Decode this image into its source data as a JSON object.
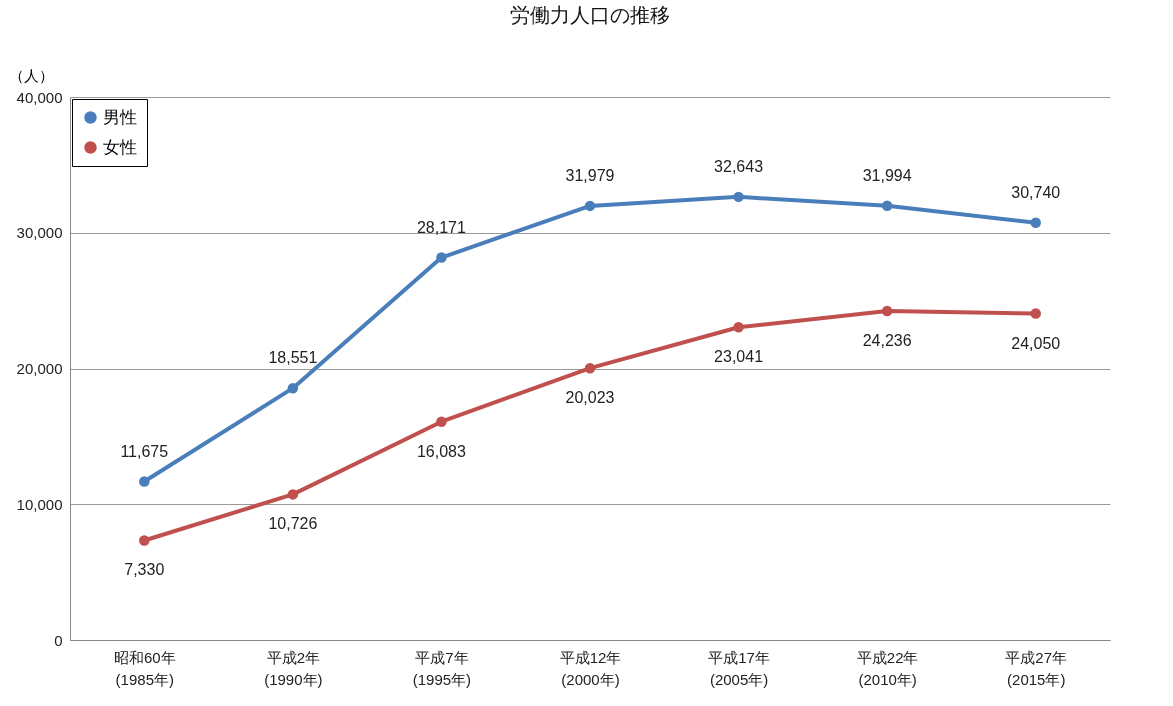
{
  "chart_data": {
    "type": "line",
    "title": "労働力人口の推移",
    "ylabel": "（人）",
    "categories": [
      "昭和60年\n(1985年)",
      "平成2年\n(1990年)",
      "平成7年\n(1995年)",
      "平成12年\n(2000年)",
      "平成17年\n(2005年)",
      "平成22年\n(2010年)",
      "平成27年\n(2015年)"
    ],
    "series": [
      {
        "name": "男性",
        "color": "#4a7ebb",
        "values": [
          11675,
          18551,
          28171,
          31979,
          32643,
          31994,
          30740
        ],
        "value_labels": [
          "11,675",
          "18,551",
          "28,171",
          "31,979",
          "32,643",
          "31,994",
          "30,740"
        ]
      },
      {
        "name": "女性",
        "color": "#c0504d",
        "values": [
          7330,
          10726,
          16083,
          20023,
          23041,
          24236,
          24050
        ],
        "value_labels": [
          "7,330",
          "10,726",
          "16,083",
          "20,023",
          "23,041",
          "24,236",
          "24,050"
        ]
      }
    ],
    "ylim": [
      0,
      40000
    ],
    "yticks": [
      0,
      {
        "value": 10000,
        "label": "10,000"
      },
      {
        "value": 20000,
        "label": "20,000"
      },
      {
        "value": 30000,
        "label": "30,000"
      },
      {
        "value": 40000,
        "label": "40,000"
      }
    ],
    "grid": "y",
    "legend": "top left",
    "marker": "circle",
    "line_style": "solid"
  }
}
